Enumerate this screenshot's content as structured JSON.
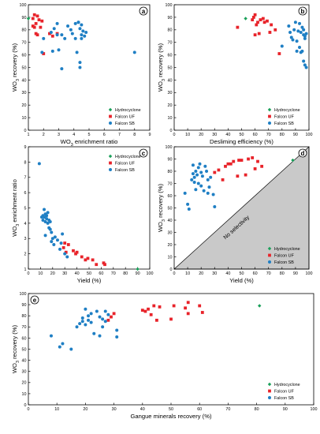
{
  "series_colors": {
    "Hydrocyclone": "#1aa05a",
    "Falcon UF": "#e8232a",
    "Falcon SB": "#1f7fc4"
  },
  "chart_data": [
    {
      "id": "a",
      "type": "scatter",
      "panel_label": "a",
      "xlabel": "WO3 enrichment ratio",
      "ylabel": "WO3 recovery (%)",
      "xlim": [
        1,
        9
      ],
      "ylim": [
        0,
        100
      ],
      "xticks": [
        1,
        2,
        3,
        4,
        5,
        6,
        7,
        8,
        9
      ],
      "yticks": [
        0,
        10,
        20,
        30,
        40,
        50,
        60,
        70,
        80,
        90,
        100
      ],
      "legend_position": "bottom-right",
      "series": [
        {
          "name": "Hydrocyclone",
          "points": [
            [
              1.0,
              89
            ]
          ]
        },
        {
          "name": "Falcon UF",
          "points": [
            [
              1.3,
              89
            ],
            [
              1.4,
              92
            ],
            [
              1.6,
              91
            ],
            [
              1.7,
              88
            ],
            [
              1.9,
              87
            ],
            [
              1.5,
              85
            ],
            [
              1.3,
              83
            ],
            [
              1.4,
              82
            ],
            [
              1.8,
              82
            ],
            [
              1.5,
              77
            ],
            [
              1.6,
              76
            ],
            [
              2.4,
              77
            ],
            [
              2.6,
              75
            ],
            [
              2.9,
              77
            ],
            [
              2.0,
              61
            ]
          ]
        },
        {
          "name": "Falcon SB",
          "points": [
            [
              1.9,
              62
            ],
            [
              2.0,
              73
            ],
            [
              2.5,
              78
            ],
            [
              2.7,
              81
            ],
            [
              2.9,
              85
            ],
            [
              2.6,
              63
            ],
            [
              2.9,
              76
            ],
            [
              3.2,
              76
            ],
            [
              3.4,
              73
            ],
            [
              3.6,
              83
            ],
            [
              3.8,
              80
            ],
            [
              3.9,
              77
            ],
            [
              4.1,
              85
            ],
            [
              4.3,
              86
            ],
            [
              4.4,
              81
            ],
            [
              4.5,
              76
            ],
            [
              4.5,
              73
            ],
            [
              4.6,
              79
            ],
            [
              4.7,
              75
            ],
            [
              4.8,
              78
            ],
            [
              4.3,
              86
            ],
            [
              3.0,
              64
            ],
            [
              3.2,
              49
            ],
            [
              4.4,
              50
            ],
            [
              4.4,
              54
            ],
            [
              4.1,
              73
            ],
            [
              4.2,
              62
            ],
            [
              4.5,
              84
            ],
            [
              8.0,
              62
            ]
          ]
        }
      ]
    },
    {
      "id": "b",
      "type": "scatter",
      "panel_label": "b",
      "xlabel": "Desliming efficiency (%)",
      "ylabel": "WO3 recovery (%)",
      "xlim": [
        0,
        100
      ],
      "ylim": [
        0,
        100
      ],
      "xticks": [
        0,
        10,
        20,
        30,
        40,
        50,
        60,
        70,
        80,
        90,
        100
      ],
      "yticks": [
        0,
        10,
        20,
        30,
        40,
        50,
        60,
        70,
        80,
        90,
        100
      ],
      "legend_position": "bottom-right",
      "series": [
        {
          "name": "Hydrocyclone",
          "points": [
            [
              53,
              89
            ]
          ]
        },
        {
          "name": "Falcon UF",
          "points": [
            [
              47,
              82
            ],
            [
              58,
              88
            ],
            [
              59,
              90
            ],
            [
              60,
              92
            ],
            [
              61,
              84
            ],
            [
              62,
              86
            ],
            [
              64,
              88
            ],
            [
              66,
              89
            ],
            [
              67,
              86
            ],
            [
              69,
              87
            ],
            [
              72,
              84
            ],
            [
              75,
              80
            ],
            [
              60,
              76
            ],
            [
              63,
              77
            ],
            [
              71,
              78
            ],
            [
              78,
              61
            ]
          ]
        },
        {
          "name": "Falcon SB",
          "points": [
            [
              80,
              67
            ],
            [
              85,
              83
            ],
            [
              86,
              78
            ],
            [
              87,
              74
            ],
            [
              88,
              72
            ],
            [
              89,
              80
            ],
            [
              90,
              86
            ],
            [
              91,
              71
            ],
            [
              92,
              79
            ],
            [
              93,
              85
            ],
            [
              94,
              78
            ],
            [
              95,
              82
            ],
            [
              96,
              80
            ],
            [
              96,
              76
            ],
            [
              97,
              75
            ],
            [
              97,
              73
            ],
            [
              98,
              77
            ],
            [
              93,
              66
            ],
            [
              94,
              62
            ],
            [
              95,
              63
            ],
            [
              96,
              55
            ],
            [
              97,
              52
            ],
            [
              98,
              50
            ],
            [
              91,
              63
            ]
          ]
        }
      ]
    },
    {
      "id": "c",
      "type": "scatter",
      "panel_label": "c",
      "xlabel": "Yield (%)",
      "ylabel": "WO3 enrichment ratio",
      "xlim": [
        0,
        100
      ],
      "ylim": [
        1,
        9
      ],
      "xticks": [
        0,
        10,
        20,
        30,
        40,
        50,
        60,
        70,
        80,
        90,
        100
      ],
      "yticks": [
        1,
        2,
        3,
        4,
        5,
        6,
        7,
        8,
        9
      ],
      "legend_position": "top-right",
      "series": [
        {
          "name": "Hydrocyclone",
          "points": [
            [
              90,
              1.0
            ]
          ]
        },
        {
          "name": "Falcon UF",
          "points": [
            [
              29,
              2.4
            ],
            [
              30,
              2.7
            ],
            [
              31,
              2.1
            ],
            [
              33,
              2.6
            ],
            [
              37,
              2.2
            ],
            [
              39,
              2.0
            ],
            [
              40,
              2.1
            ],
            [
              44,
              1.8
            ],
            [
              47,
              1.6
            ],
            [
              49,
              1.7
            ],
            [
              53,
              1.6
            ],
            [
              56,
              1.3
            ],
            [
              62,
              1.4
            ],
            [
              63,
              1.3
            ]
          ]
        },
        {
          "name": "Falcon SB",
          "points": [
            [
              9,
              7.9
            ],
            [
              11,
              4.4
            ],
            [
              12,
              4.2
            ],
            [
              12,
              4.5
            ],
            [
              13,
              4.4
            ],
            [
              13,
              4.9
            ],
            [
              14,
              4.1
            ],
            [
              14,
              4.6
            ],
            [
              15,
              4.3
            ],
            [
              15,
              4.5
            ],
            [
              16,
              4.0
            ],
            [
              16,
              4.7
            ],
            [
              17,
              3.7
            ],
            [
              17,
              4.2
            ],
            [
              18,
              3.6
            ],
            [
              18,
              4.1
            ],
            [
              19,
              3.4
            ],
            [
              20,
              3.0
            ],
            [
              21,
              2.6
            ],
            [
              22,
              3.1
            ],
            [
              24,
              2.9
            ],
            [
              26,
              2.3
            ],
            [
              27,
              2.7
            ],
            [
              28,
              3.3
            ],
            [
              30,
              2.0
            ],
            [
              32,
              1.8
            ],
            [
              14,
              3.2
            ],
            [
              19,
              2.8
            ]
          ]
        }
      ]
    },
    {
      "id": "d",
      "type": "scatter",
      "panel_label": "d",
      "xlabel": "Yield (%)",
      "ylabel": "WO3 recovery (%)",
      "xlim": [
        0,
        100
      ],
      "ylim": [
        0,
        100
      ],
      "xticks": [
        0,
        10,
        20,
        30,
        40,
        50,
        60,
        70,
        80,
        90,
        100
      ],
      "yticks": [
        0,
        10,
        20,
        30,
        40,
        50,
        60,
        70,
        80,
        90,
        100
      ],
      "legend_position": "bottom-right",
      "annotation": "No selectivity",
      "series": [
        {
          "name": "Hydrocyclone",
          "points": [
            [
              88,
              89
            ]
          ]
        },
        {
          "name": "Falcon UF",
          "points": [
            [
              30,
              79
            ],
            [
              33,
              81
            ],
            [
              38,
              84
            ],
            [
              40,
              86
            ],
            [
              42,
              86
            ],
            [
              44,
              88
            ],
            [
              48,
              89
            ],
            [
              50,
              89
            ],
            [
              55,
              90
            ],
            [
              58,
              91
            ],
            [
              62,
              88
            ],
            [
              65,
              84
            ],
            [
              60,
              82
            ],
            [
              53,
              77
            ],
            [
              47,
              76
            ],
            [
              36,
              73
            ]
          ]
        },
        {
          "name": "Falcon SB",
          "points": [
            [
              8,
              62
            ],
            [
              10,
              53
            ],
            [
              11,
              49
            ],
            [
              13,
              73
            ],
            [
              14,
              78
            ],
            [
              15,
              75
            ],
            [
              15,
              71
            ],
            [
              16,
              80
            ],
            [
              17,
              77
            ],
            [
              18,
              83
            ],
            [
              18,
              70
            ],
            [
              19,
              86
            ],
            [
              20,
              79
            ],
            [
              20,
              68
            ],
            [
              21,
              76
            ],
            [
              22,
              64
            ],
            [
              23,
              84
            ],
            [
              24,
              80
            ],
            [
              25,
              73
            ],
            [
              25,
              62
            ],
            [
              26,
              67
            ],
            [
              27,
              75
            ],
            [
              29,
              61
            ],
            [
              30,
              51
            ],
            [
              14,
              85
            ],
            [
              16,
              65
            ]
          ]
        }
      ]
    },
    {
      "id": "e",
      "type": "scatter",
      "panel_label": "e",
      "xlabel": "Gangue minerals recovery (%)",
      "ylabel": "WO3 recovery (%)",
      "xlim": [
        0,
        100
      ],
      "ylim": [
        0,
        100
      ],
      "xticks": [
        0,
        10,
        20,
        30,
        40,
        50,
        60,
        70,
        80,
        90,
        100
      ],
      "yticks": [
        0,
        10,
        20,
        30,
        40,
        50,
        60,
        70,
        80,
        90,
        100
      ],
      "legend_position": "bottom-right",
      "series": [
        {
          "name": "Hydrocyclone",
          "points": [
            [
              81,
              89
            ]
          ]
        },
        {
          "name": "Falcon UF",
          "points": [
            [
              28,
              76
            ],
            [
              29,
              79
            ],
            [
              30,
              82
            ],
            [
              40,
              85
            ],
            [
              41,
              84
            ],
            [
              42,
              86
            ],
            [
              43,
              81
            ],
            [
              44,
              89
            ],
            [
              45,
              76
            ],
            [
              46,
              88
            ],
            [
              50,
              77
            ],
            [
              51,
              89
            ],
            [
              55,
              87
            ],
            [
              56,
              92
            ],
            [
              56,
              82
            ],
            [
              60,
              89
            ],
            [
              61,
              83
            ]
          ]
        },
        {
          "name": "Falcon SB",
          "points": [
            [
              8,
              62
            ],
            [
              11,
              52
            ],
            [
              12,
              55
            ],
            [
              15,
              50
            ],
            [
              17,
              70
            ],
            [
              18,
              73
            ],
            [
              19,
              75
            ],
            [
              19,
              78
            ],
            [
              20,
              72
            ],
            [
              20,
              86
            ],
            [
              21,
              80
            ],
            [
              21,
              76
            ],
            [
              22,
              82
            ],
            [
              22,
              74
            ],
            [
              23,
              64
            ],
            [
              24,
              84
            ],
            [
              25,
              79
            ],
            [
              25,
              62
            ],
            [
              26,
              70
            ],
            [
              27,
              84
            ],
            [
              28,
              81
            ],
            [
              26,
              77
            ],
            [
              31,
              67
            ],
            [
              31,
              61
            ],
            [
              27,
              75
            ]
          ]
        }
      ]
    }
  ]
}
